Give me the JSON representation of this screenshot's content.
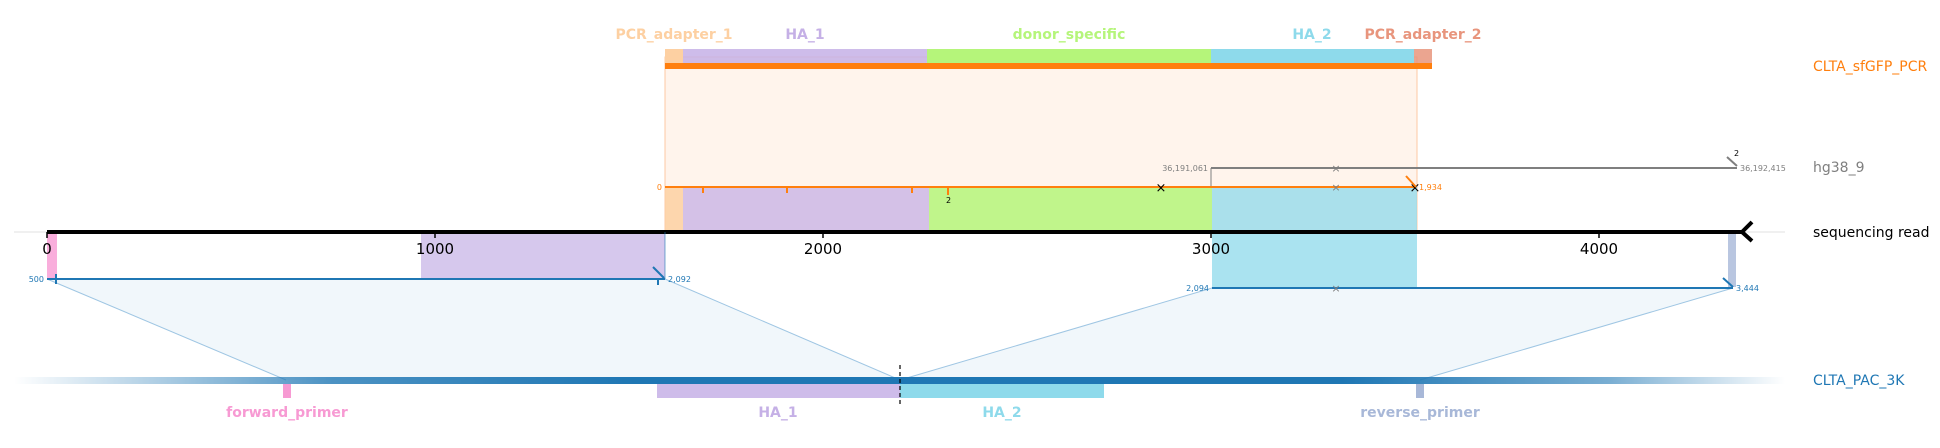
{
  "tracks": {
    "pcr": {
      "name": "CLTA_sfGFP_PCR",
      "color": "#ff7f0e"
    },
    "genome": {
      "name": "hg38_9",
      "color": "#7f7f7f"
    },
    "read": {
      "name": "sequencing read",
      "color": "#000000"
    },
    "plasmid": {
      "name": "CLTA_PAC_3K",
      "color": "#1f77b4"
    }
  },
  "top_features": [
    {
      "name": "PCR_adapter_1",
      "color": "#fdd0a2"
    },
    {
      "name": "HA_1",
      "color": "#c5b0e6"
    },
    {
      "name": "donor_specific",
      "color": "#b5f57a"
    },
    {
      "name": "HA_2",
      "color": "#8edaeb"
    },
    {
      "name": "PCR_adapter_2",
      "color": "#e8957d"
    }
  ],
  "bottom_features": [
    {
      "name": "forward_primer",
      "color": "#f79ad3"
    },
    {
      "name": "HA_1",
      "color": "#c5b0e6"
    },
    {
      "name": "HA_2",
      "color": "#8edaeb"
    },
    {
      "name": "reverse_primer",
      "color": "#a8b8d8"
    }
  ],
  "axis": {
    "ticks": [
      "0",
      "1000",
      "2000",
      "3000",
      "4000"
    ]
  },
  "coords": {
    "pcr_start": "0",
    "pcr_end": "1,934",
    "genome_start": "36,191,061",
    "genome_end": "36,192,415",
    "plasmid_left_start": "500",
    "plasmid_left_end": "2,092",
    "plasmid_right_start": "2,094",
    "plasmid_right_end": "3,444"
  },
  "annotations": {
    "pcr_indel": "2",
    "genome_indel": "2"
  }
}
